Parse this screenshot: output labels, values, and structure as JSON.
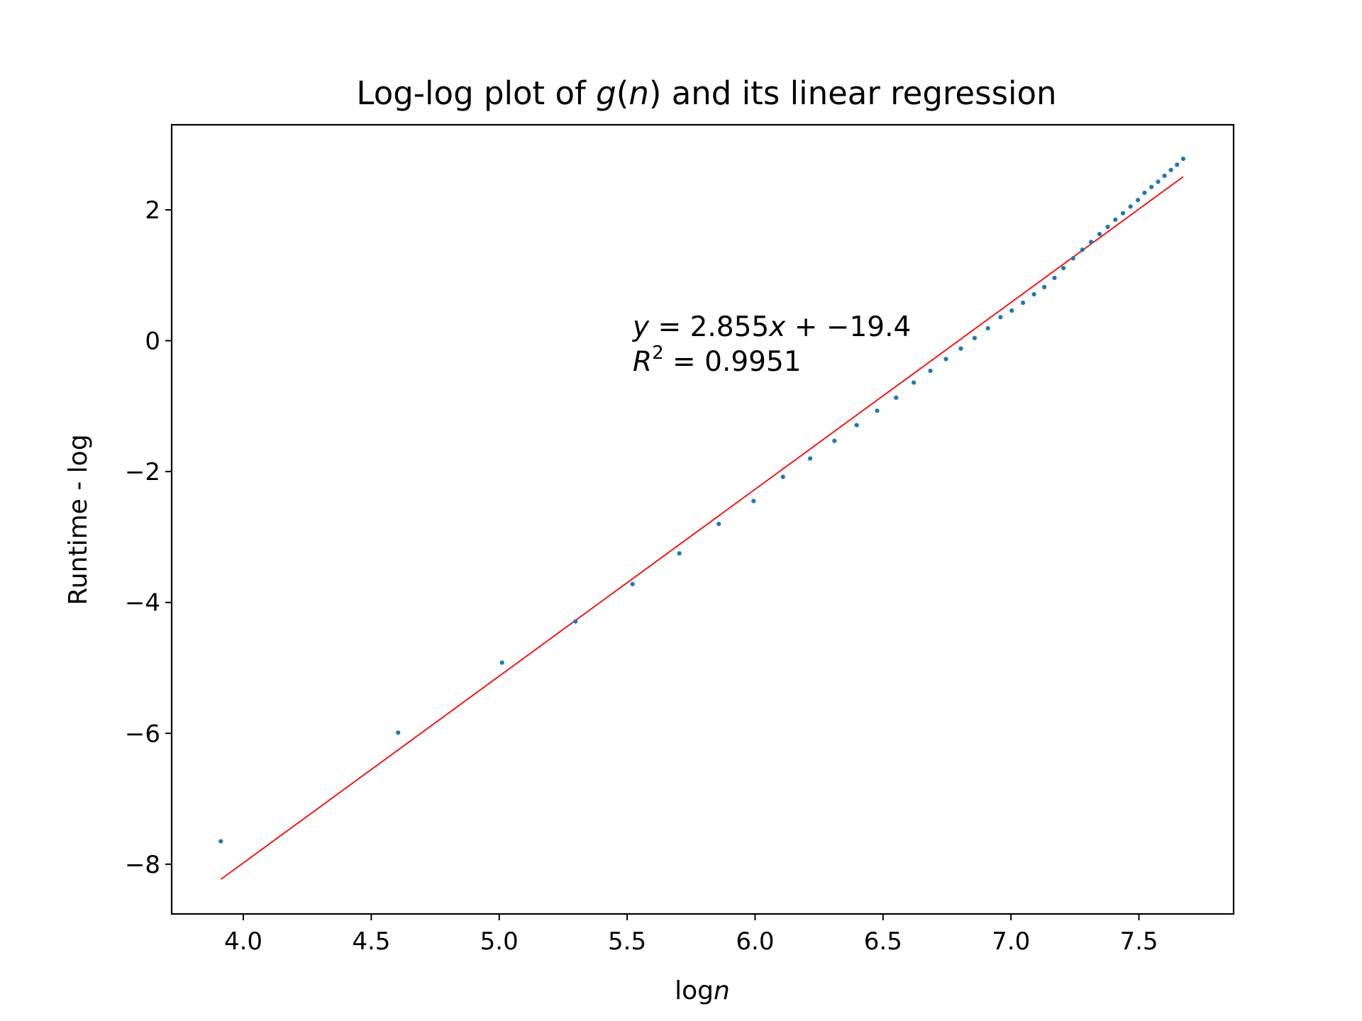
{
  "chart_data": {
    "type": "scatter",
    "title": "Log-log plot of g(n) and its linear regression",
    "title_parts": {
      "prefix": "Log-log plot of ",
      "func": "g",
      "open": "(",
      "arg": "n",
      "close": ")",
      "suffix": " and its linear regression"
    },
    "xlabel": "log",
    "xlabel_var": "n",
    "ylabel": "Runtime - log",
    "xlim": [
      3.72,
      7.87
    ],
    "ylim": [
      -8.76,
      3.3
    ],
    "xticks": [
      4.0,
      4.5,
      5.0,
      5.5,
      6.0,
      6.5,
      7.0,
      7.5
    ],
    "xtick_labels": [
      "4.0",
      "4.5",
      "5.0",
      "5.5",
      "6.0",
      "6.5",
      "7.0",
      "7.5"
    ],
    "yticks": [
      2,
      0,
      -2,
      -4,
      -6,
      -8
    ],
    "ytick_labels": [
      "2",
      "0",
      "−2",
      "−4",
      "−6",
      "−8"
    ],
    "series": [
      {
        "name": "log runtime",
        "marker": "point",
        "color": "#1f77b4",
        "x": [
          3.912,
          4.605,
          5.011,
          5.298,
          5.521,
          5.704,
          5.858,
          5.994,
          6.109,
          6.215,
          6.31,
          6.397,
          6.477,
          6.551,
          6.62,
          6.685,
          6.746,
          6.804,
          6.858,
          6.91,
          6.959,
          7.003,
          7.047,
          7.09,
          7.13,
          7.17,
          7.205,
          7.243,
          7.279,
          7.313,
          7.346,
          7.378,
          7.408,
          7.438,
          7.467,
          7.496,
          7.522,
          7.549,
          7.575,
          7.6,
          7.625,
          7.649,
          7.673
        ],
        "y": [
          -7.65,
          -5.99,
          -4.92,
          -4.29,
          -3.72,
          -3.25,
          -2.8,
          -2.45,
          -2.08,
          -1.8,
          -1.53,
          -1.29,
          -1.07,
          -0.87,
          -0.64,
          -0.46,
          -0.28,
          -0.12,
          0.04,
          0.19,
          0.36,
          0.46,
          0.58,
          0.71,
          0.82,
          0.96,
          1.11,
          1.26,
          1.39,
          1.51,
          1.63,
          1.74,
          1.85,
          1.95,
          2.05,
          2.15,
          2.26,
          2.35,
          2.43,
          2.52,
          2.61,
          2.69,
          2.78
        ]
      },
      {
        "name": "linear regression",
        "marker": "line",
        "color": "#ff0000",
        "slope": 2.855,
        "intercept": -19.4,
        "x_range": [
          3.912,
          7.673
        ]
      }
    ],
    "annotations": [
      {
        "text": "y = 2.855x + −19.4",
        "at": [
          5.52,
          0.18
        ]
      },
      {
        "text": "R² = 0.9951",
        "at": [
          5.52,
          -0.4
        ]
      }
    ],
    "annotation_parts": {
      "eq_y": "y",
      "eq_rest1": " = 2.855",
      "eq_x": "x",
      "eq_rest2": " + −19.4",
      "r2_r": "R",
      "r2_sup": "2",
      "r2_rest": " = 0.9951"
    },
    "grid": false,
    "legend": "none"
  }
}
